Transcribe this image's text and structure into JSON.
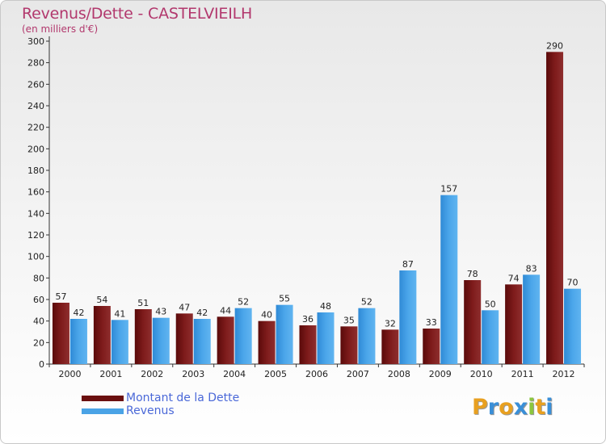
{
  "chart_data": {
    "type": "bar",
    "title": "Revenus/Dette - CASTELVIEILH",
    "subtitle": "(en milliers d'€)",
    "categories": [
      "2000",
      "2001",
      "2002",
      "2003",
      "2004",
      "2005",
      "2006",
      "2007",
      "2008",
      "2009",
      "2010",
      "2011",
      "2012"
    ],
    "series": [
      {
        "name": "Montant de la Dette",
        "color": "#7a1e1e",
        "values": [
          57,
          54,
          51,
          47,
          44,
          40,
          36,
          35,
          32,
          33,
          78,
          74,
          290
        ]
      },
      {
        "name": "Revenus",
        "color": "#3d9be0",
        "values": [
          42,
          41,
          43,
          42,
          52,
          55,
          48,
          52,
          87,
          157,
          50,
          83,
          70
        ]
      }
    ],
    "ylim": [
      0,
      300
    ],
    "yticks": [
      0,
      20,
      40,
      60,
      80,
      100,
      120,
      140,
      160,
      180,
      200,
      220,
      240,
      260,
      280,
      300
    ],
    "grid": false,
    "legend": "bottom-left"
  },
  "legend": {
    "debt_label": "Montant de la Dette",
    "revenue_label": "Revenus",
    "debt_color": "#6b0f0f",
    "revenue_color": "#4aa3e6"
  },
  "logo": {
    "text": "Proxiti",
    "letters": [
      "P",
      "r",
      "o",
      "x",
      "i",
      "t",
      "i"
    ],
    "colors": [
      "#e8a020",
      "#3a8fd8",
      "#e8a020",
      "#3a8fd8",
      "#8cc63f",
      "#e8a020",
      "#3a8fd8"
    ]
  }
}
